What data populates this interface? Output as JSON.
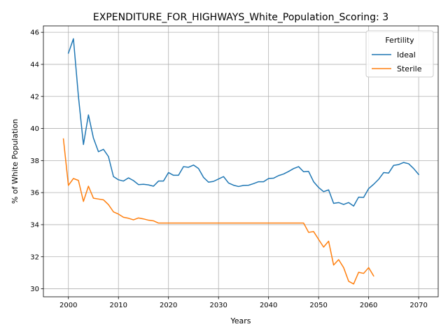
{
  "chart_data": {
    "type": "line",
    "title": "EXPENDITURE_FOR_HIGHWAYS_White_Population_Scoring: 3",
    "xlabel": "Years",
    "ylabel": "% of White Population",
    "xlim": [
      1995.0,
      2073.9
    ],
    "ylim": [
      29.5,
      46.4
    ],
    "xticks": [
      2000,
      2010,
      2020,
      2030,
      2040,
      2050,
      2060,
      2070
    ],
    "yticks": [
      30,
      32,
      34,
      36,
      38,
      40,
      42,
      44,
      46
    ],
    "grid": true,
    "legend": {
      "title": "Fertility",
      "position": "top-right"
    },
    "series": [
      {
        "name": "Ideal",
        "color": "#1f77b4",
        "x": [
          2000,
          2001,
          2002,
          2003,
          2004,
          2005,
          2006,
          2007,
          2008,
          2009,
          2010,
          2011,
          2012,
          2013,
          2014,
          2015,
          2016,
          2017,
          2018,
          2019,
          2020,
          2021,
          2022,
          2023,
          2024,
          2025,
          2026,
          2027,
          2028,
          2029,
          2030,
          2031,
          2032,
          2033,
          2034,
          2035,
          2036,
          2037,
          2038,
          2039,
          2040,
          2041,
          2042,
          2043,
          2044,
          2045,
          2046,
          2047,
          2048,
          2049,
          2050,
          2051,
          2052,
          2053,
          2054,
          2055,
          2056,
          2057,
          2058,
          2059,
          2060,
          2061,
          2062,
          2063,
          2064,
          2065,
          2066,
          2067,
          2068,
          2069,
          2070
        ],
        "y": [
          44.7,
          45.6,
          42.0,
          39.0,
          40.85,
          39.4,
          38.55,
          38.7,
          38.25,
          37.0,
          36.8,
          36.72,
          36.92,
          36.75,
          36.5,
          36.52,
          36.48,
          36.4,
          36.72,
          36.72,
          37.25,
          37.08,
          37.08,
          37.62,
          37.58,
          37.72,
          37.5,
          36.95,
          36.65,
          36.7,
          36.85,
          37.0,
          36.6,
          36.46,
          36.38,
          36.45,
          36.46,
          36.56,
          36.68,
          36.68,
          36.88,
          36.9,
          37.06,
          37.16,
          37.32,
          37.5,
          37.62,
          37.3,
          37.32,
          36.68,
          36.32,
          36.06,
          36.17,
          35.33,
          35.38,
          35.26,
          35.38,
          35.16,
          35.72,
          35.7,
          36.25,
          36.52,
          36.83,
          37.25,
          37.22,
          37.7,
          37.75,
          37.88,
          37.8,
          37.5,
          37.13
        ]
      },
      {
        "name": "Sterile",
        "color": "#ff7f0e",
        "x": [
          1999,
          2000,
          2001,
          2002,
          2003,
          2004,
          2005,
          2006,
          2007,
          2008,
          2009,
          2010,
          2011,
          2012,
          2013,
          2014,
          2015,
          2016,
          2017,
          2018,
          2019,
          2020,
          2021,
          2022,
          2023,
          2024,
          2025,
          2026,
          2027,
          2028,
          2029,
          2030,
          2031,
          2032,
          2033,
          2034,
          2035,
          2036,
          2037,
          2038,
          2039,
          2040,
          2041,
          2042,
          2043,
          2044,
          2045,
          2046,
          2047,
          2048,
          2049,
          2050,
          2051,
          2052,
          2053,
          2054,
          2055,
          2056,
          2057,
          2058,
          2059,
          2060,
          2061
        ],
        "y": [
          39.35,
          36.45,
          36.88,
          36.76,
          35.45,
          36.4,
          35.65,
          35.6,
          35.55,
          35.25,
          34.8,
          34.66,
          34.46,
          34.4,
          34.3,
          34.42,
          34.36,
          34.28,
          34.24,
          34.1,
          34.1,
          34.1,
          34.1,
          34.1,
          34.1,
          34.1,
          34.1,
          34.1,
          34.1,
          34.1,
          34.1,
          34.1,
          34.1,
          34.1,
          34.1,
          34.1,
          34.1,
          34.1,
          34.1,
          34.1,
          34.1,
          34.1,
          34.1,
          34.1,
          34.1,
          34.1,
          34.1,
          34.1,
          34.1,
          33.52,
          33.57,
          33.08,
          32.6,
          32.97,
          31.48,
          31.82,
          31.32,
          30.47,
          30.3,
          31.03,
          30.96,
          31.32,
          30.8
        ]
      }
    ]
  }
}
